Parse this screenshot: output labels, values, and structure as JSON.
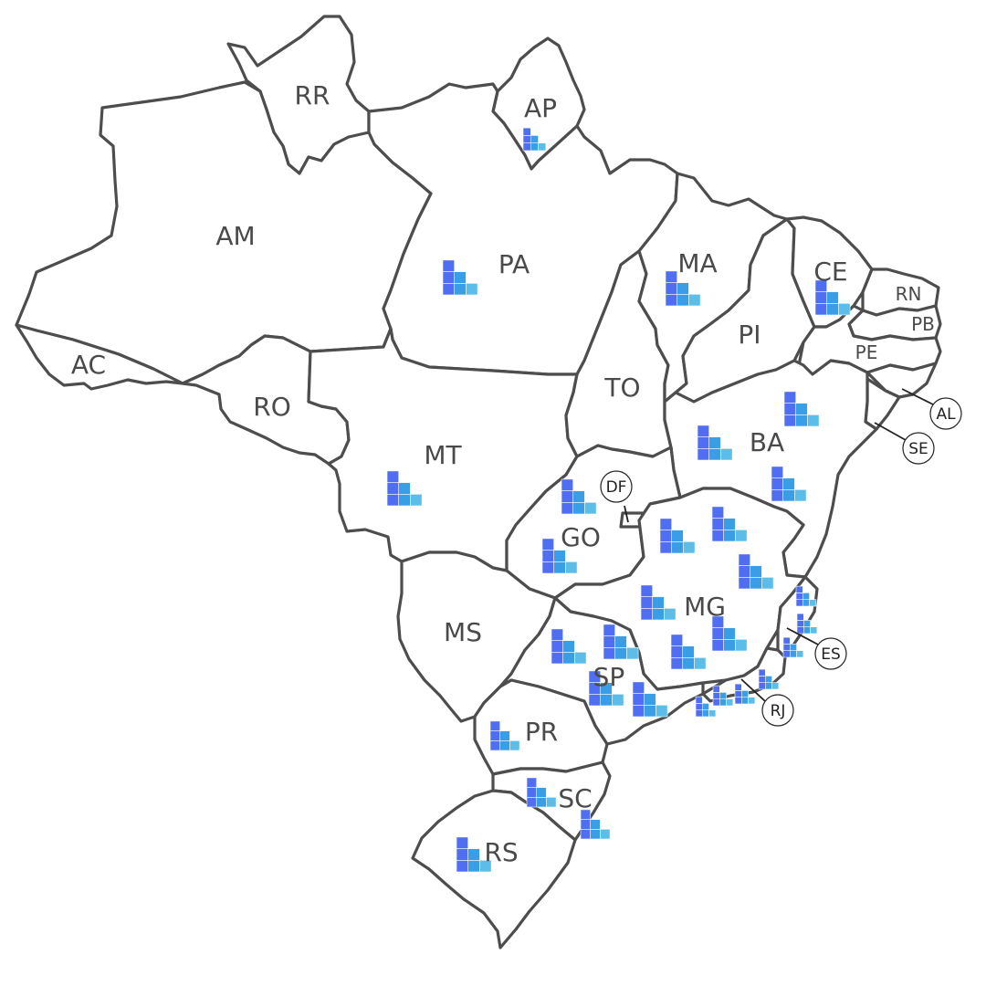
{
  "map": {
    "states": [
      {
        "id": "RR",
        "label": "RR"
      },
      {
        "id": "AP",
        "label": "AP"
      },
      {
        "id": "AM",
        "label": "AM"
      },
      {
        "id": "PA",
        "label": "PA"
      },
      {
        "id": "AC",
        "label": "AC"
      },
      {
        "id": "RO",
        "label": "RO"
      },
      {
        "id": "MT",
        "label": "MT"
      },
      {
        "id": "TO",
        "label": "TO"
      },
      {
        "id": "MA",
        "label": "MA"
      },
      {
        "id": "PI",
        "label": "PI"
      },
      {
        "id": "CE",
        "label": "CE"
      },
      {
        "id": "RN",
        "label": "RN"
      },
      {
        "id": "PB",
        "label": "PB"
      },
      {
        "id": "PE",
        "label": "PE"
      },
      {
        "id": "BA",
        "label": "BA"
      },
      {
        "id": "GO",
        "label": "GO"
      },
      {
        "id": "MG",
        "label": "MG"
      },
      {
        "id": "MS",
        "label": "MS"
      },
      {
        "id": "SP",
        "label": "SP"
      },
      {
        "id": "PR",
        "label": "PR"
      },
      {
        "id": "SC",
        "label": "SC"
      },
      {
        "id": "RS",
        "label": "RS"
      }
    ],
    "callouts": [
      {
        "id": "DF",
        "label": "DF"
      },
      {
        "id": "AL",
        "label": "AL"
      },
      {
        "id": "SE",
        "label": "SE"
      },
      {
        "id": "ES",
        "label": "ES"
      },
      {
        "id": "RJ",
        "label": "RJ"
      }
    ],
    "bar_glyph": {
      "columns": [
        3,
        2,
        1
      ],
      "colors": [
        "#4f6ef2",
        "#3a9ee6",
        "#5cbde8"
      ]
    }
  }
}
